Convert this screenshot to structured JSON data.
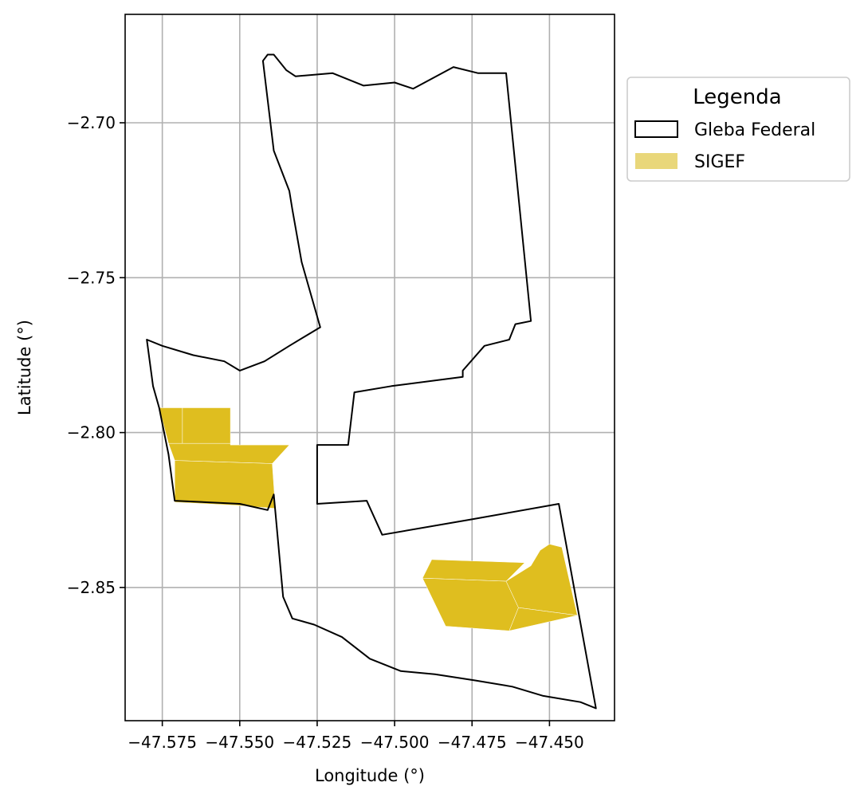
{
  "chart_data": {
    "type": "map",
    "xlabel": "Longitude (°)",
    "ylabel": "Latitude (°)",
    "xlim": [
      -47.587,
      -47.429
    ],
    "ylim": [
      -2.893,
      -2.665
    ],
    "x_ticks": [
      -47.575,
      -47.55,
      -47.525,
      -47.5,
      -47.475,
      -47.45
    ],
    "x_tick_labels": [
      "−47.575",
      "−47.550",
      "−47.525",
      "−47.500",
      "−47.475",
      "−47.450"
    ],
    "y_ticks": [
      -2.7,
      -2.75,
      -2.8,
      -2.85
    ],
    "y_tick_labels": [
      "−2.70",
      "−2.75",
      "−2.80",
      "−2.85"
    ],
    "grid": true,
    "legend": {
      "title": "Legenda",
      "placement": "outside-top-right",
      "entries": [
        {
          "label": "Gleba Federal",
          "style": "outline",
          "color": "#000000"
        },
        {
          "label": "SIGEF",
          "style": "fill",
          "color": "#e9d77a"
        }
      ]
    },
    "layers": [
      {
        "name": "Gleba Federal",
        "stroke": "#000000",
        "fill": "none",
        "polygons": [
          [
            [
              -47.5425,
              -2.68
            ],
            [
              -47.541,
              -2.678
            ],
            [
              -47.539,
              -2.678
            ],
            [
              -47.535,
              -2.683
            ],
            [
              -47.532,
              -2.685
            ],
            [
              -47.52,
              -2.684
            ],
            [
              -47.51,
              -2.688
            ],
            [
              -47.5,
              -2.687
            ],
            [
              -47.494,
              -2.689
            ],
            [
              -47.481,
              -2.682
            ],
            [
              -47.473,
              -2.684
            ],
            [
              -47.464,
              -2.684
            ],
            [
              -47.456,
              -2.764
            ],
            [
              -47.461,
              -2.765
            ],
            [
              -47.463,
              -2.77
            ],
            [
              -47.471,
              -2.772
            ],
            [
              -47.478,
              -2.78
            ],
            [
              -47.478,
              -2.782
            ],
            [
              -47.501,
              -2.785
            ],
            [
              -47.513,
              -2.787
            ],
            [
              -47.515,
              -2.804
            ],
            [
              -47.525,
              -2.804
            ],
            [
              -47.525,
              -2.823
            ],
            [
              -47.509,
              -2.822
            ],
            [
              -47.504,
              -2.833
            ],
            [
              -47.475,
              -2.828
            ],
            [
              -47.447,
              -2.823
            ],
            [
              -47.435,
              -2.889
            ],
            [
              -47.44,
              -2.887
            ],
            [
              -47.452,
              -2.885
            ],
            [
              -47.462,
              -2.882
            ],
            [
              -47.474,
              -2.88
            ],
            [
              -47.487,
              -2.878
            ],
            [
              -47.498,
              -2.877
            ],
            [
              -47.508,
              -2.873
            ],
            [
              -47.517,
              -2.866
            ],
            [
              -47.526,
              -2.862
            ],
            [
              -47.533,
              -2.86
            ],
            [
              -47.536,
              -2.853
            ],
            [
              -47.539,
              -2.82
            ],
            [
              -47.541,
              -2.825
            ],
            [
              -47.55,
              -2.823
            ],
            [
              -47.571,
              -2.822
            ],
            [
              -47.573,
              -2.807
            ],
            [
              -47.576,
              -2.792
            ],
            [
              -47.578,
              -2.785
            ],
            [
              -47.58,
              -2.77
            ],
            [
              -47.575,
              -2.772
            ],
            [
              -47.565,
              -2.775
            ],
            [
              -47.555,
              -2.777
            ],
            [
              -47.55,
              -2.78
            ],
            [
              -47.542,
              -2.777
            ],
            [
              -47.534,
              -2.772
            ],
            [
              -47.529,
              -2.769
            ],
            [
              -47.524,
              -2.766
            ],
            [
              -47.53,
              -2.745
            ],
            [
              -47.533,
              -2.728
            ],
            [
              -47.534,
              -2.722
            ],
            [
              -47.539,
              -2.709
            ],
            [
              -47.5425,
              -2.68
            ]
          ]
        ]
      },
      {
        "name": "SIGEF",
        "stroke": "#ffffff",
        "fill": "#dfbe1f",
        "polygons": [
          [
            [
              -47.576,
              -2.792
            ],
            [
              -47.5685,
              -2.792
            ],
            [
              -47.5685,
              -2.8035
            ],
            [
              -47.573,
              -2.8035
            ]
          ],
          [
            [
              -47.5685,
              -2.792
            ],
            [
              -47.553,
              -2.792
            ],
            [
              -47.553,
              -2.8035
            ],
            [
              -47.5685,
              -2.8035
            ]
          ],
          [
            [
              -47.573,
              -2.8035
            ],
            [
              -47.553,
              -2.8035
            ],
            [
              -47.553,
              -2.804
            ],
            [
              -47.534,
              -2.804
            ],
            [
              -47.5395,
              -2.81
            ],
            [
              -47.571,
              -2.809
            ]
          ],
          [
            [
              -47.571,
              -2.809
            ],
            [
              -47.5395,
              -2.81
            ],
            [
              -47.5385,
              -2.8245
            ],
            [
              -47.551,
              -2.8235
            ],
            [
              -47.571,
              -2.8225
            ]
          ],
          [
            [
              -47.488,
              -2.841
            ],
            [
              -47.458,
              -2.842
            ],
            [
              -47.464,
              -2.848
            ],
            [
              -47.491,
              -2.847
            ]
          ],
          [
            [
              -47.491,
              -2.847
            ],
            [
              -47.464,
              -2.848
            ],
            [
              -47.46,
              -2.8565
            ],
            [
              -47.463,
              -2.864
            ],
            [
              -47.4835,
              -2.8625
            ]
          ],
          [
            [
              -47.464,
              -2.848
            ],
            [
              -47.456,
              -2.843
            ],
            [
              -47.453,
              -2.838
            ],
            [
              -47.45,
              -2.836
            ],
            [
              -47.446,
              -2.837
            ],
            [
              -47.441,
              -2.859
            ],
            [
              -47.46,
              -2.8565
            ]
          ],
          [
            [
              -47.46,
              -2.8565
            ],
            [
              -47.441,
              -2.859
            ],
            [
              -47.463,
              -2.864
            ]
          ]
        ]
      }
    ]
  }
}
